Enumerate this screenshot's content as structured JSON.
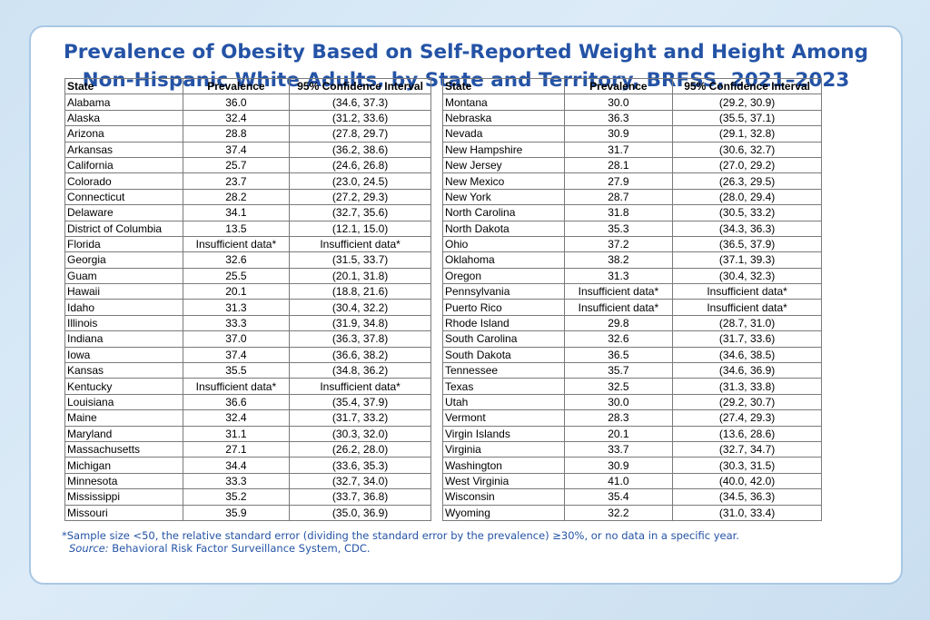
{
  "title_line1": "Prevalence of Obesity Based on Self-Reported Weight and Height Among",
  "title_line2": "Non-Hispanic White Adults, by State and Territory, BRFSS, 2021–2023",
  "columns": [
    "State",
    "Prevalence",
    "95% Confidence Interval"
  ],
  "left_rows": [
    [
      "Alabama",
      "36.0",
      "(34.6, 37.3)"
    ],
    [
      "Alaska",
      "32.4",
      "(31.2, 33.6)"
    ],
    [
      "Arizona",
      "28.8",
      "(27.8, 29.7)"
    ],
    [
      "Arkansas",
      "37.4",
      "(36.2, 38.6)"
    ],
    [
      "California",
      "25.7",
      "(24.6, 26.8)"
    ],
    [
      "Colorado",
      "23.7",
      "(23.0, 24.5)"
    ],
    [
      "Connecticut",
      "28.2",
      "(27.2, 29.3)"
    ],
    [
      "Delaware",
      "34.1",
      "(32.7, 35.6)"
    ],
    [
      "District of Columbia",
      "13.5",
      "(12.1, 15.0)"
    ],
    [
      "Florida",
      "Insufficient data*",
      "Insufficient data*"
    ],
    [
      "Georgia",
      "32.6",
      "(31.5, 33.7)"
    ],
    [
      "Guam",
      "25.5",
      "(20.1, 31.8)"
    ],
    [
      "Hawaii",
      "20.1",
      "(18.8, 21.6)"
    ],
    [
      "Idaho",
      "31.3",
      "(30.4, 32.2)"
    ],
    [
      "Illinois",
      "33.3",
      "(31.9, 34.8)"
    ],
    [
      "Indiana",
      "37.0",
      "(36.3, 37.8)"
    ],
    [
      "Iowa",
      "37.4",
      "(36.6, 38.2)"
    ],
    [
      "Kansas",
      "35.5",
      "(34.8, 36.2)"
    ],
    [
      "Kentucky",
      "Insufficient data*",
      "Insufficient data*"
    ],
    [
      "Louisiana",
      "36.6",
      "(35.4, 37.9)"
    ],
    [
      "Maine",
      "32.4",
      "(31.7, 33.2)"
    ],
    [
      "Maryland",
      "31.1",
      "(30.3, 32.0)"
    ],
    [
      "Massachusetts",
      "27.1",
      "(26.2, 28.0)"
    ],
    [
      "Michigan",
      "34.4",
      "(33.6, 35.3)"
    ],
    [
      "Minnesota",
      "33.3",
      "(32.7, 34.0)"
    ],
    [
      "Mississippi",
      "35.2",
      "(33.7, 36.8)"
    ],
    [
      "Missouri",
      "35.9",
      "(35.0, 36.9)"
    ]
  ],
  "right_rows": [
    [
      "Montana",
      "30.0",
      "(29.2, 30.9)"
    ],
    [
      "Nebraska",
      "36.3",
      "(35.5, 37.1)"
    ],
    [
      "Nevada",
      "30.9",
      "(29.1, 32.8)"
    ],
    [
      "New Hampshire",
      "31.7",
      "(30.6, 32.7)"
    ],
    [
      "New Jersey",
      "28.1",
      "(27.0, 29.2)"
    ],
    [
      "New Mexico",
      "27.9",
      "(26.3, 29.5)"
    ],
    [
      "New York",
      "28.7",
      "(28.0, 29.4)"
    ],
    [
      "North Carolina",
      "31.8",
      "(30.5, 33.2)"
    ],
    [
      "North Dakota",
      "35.3",
      "(34.3, 36.3)"
    ],
    [
      "Ohio",
      "37.2",
      "(36.5, 37.9)"
    ],
    [
      "Oklahoma",
      "38.2",
      "(37.1, 39.3)"
    ],
    [
      "Oregon",
      "31.3",
      "(30.4, 32.3)"
    ],
    [
      "Pennsylvania",
      "Insufficient data*",
      "Insufficient data*"
    ],
    [
      "Puerto Rico",
      "Insufficient data*",
      "Insufficient data*"
    ],
    [
      "Rhode Island",
      "29.8",
      "(28.7, 31.0)"
    ],
    [
      "South Carolina",
      "32.6",
      "(31.7, 33.6)"
    ],
    [
      "South Dakota",
      "36.5",
      "(34.6, 38.5)"
    ],
    [
      "Tennessee",
      "35.7",
      "(34.6, 36.9)"
    ],
    [
      "Texas",
      "32.5",
      "(31.3, 33.8)"
    ],
    [
      "Utah",
      "30.0",
      "(29.2, 30.7)"
    ],
    [
      "Vermont",
      "28.3",
      "(27.4, 29.3)"
    ],
    [
      "Virgin Islands",
      "20.1",
      "(13.6, 28.6)"
    ],
    [
      "Virginia",
      "33.7",
      "(32.7, 34.7)"
    ],
    [
      "Washington",
      "30.9",
      "(30.3, 31.5)"
    ],
    [
      "West Virginia",
      "41.0",
      "(40.0, 42.0)"
    ],
    [
      "Wisconsin",
      "35.4",
      "(34.5, 36.3)"
    ],
    [
      "Wyoming",
      "32.2",
      "(31.0, 33.4)"
    ]
  ],
  "footnote": "*Sample size <50, the relative standard error (dividing the standard error by the prevalence) ≥30%, or no data in a specific year.",
  "source_label": "Source:",
  "source_text": " Behavioral Risk Factor Surveillance System, CDC.",
  "colors": {
    "title": "#2453a6",
    "border": "#a9c8e4",
    "background": "#cfe3f3"
  }
}
